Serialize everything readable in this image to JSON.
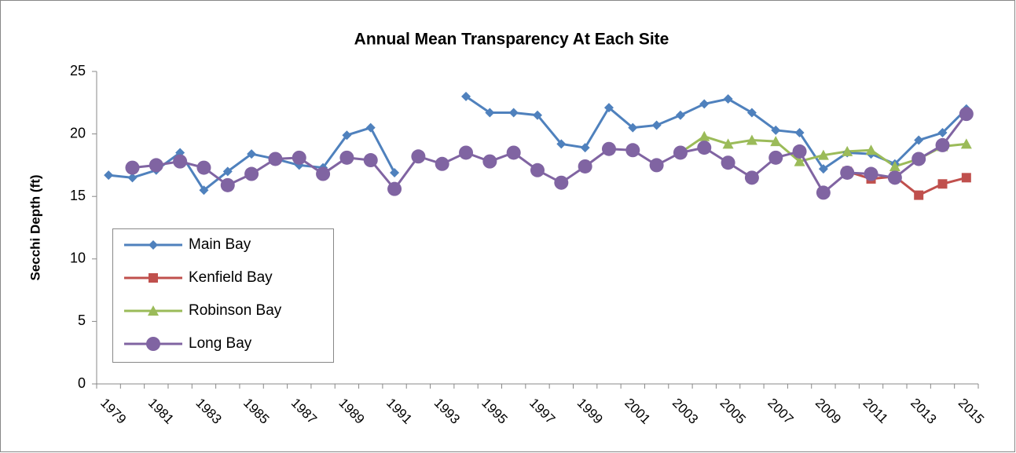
{
  "chart_data": {
    "type": "line",
    "title": "Annual Mean Transparency At Each Site",
    "y_label": "Secchi Depth (ft)",
    "categories": [
      "1979",
      null,
      "1981",
      null,
      "1983",
      null,
      "1985",
      null,
      "1987",
      null,
      "1989",
      null,
      "1991",
      null,
      "1993",
      null,
      "1995",
      null,
      "1997",
      null,
      "1999",
      null,
      "2001",
      null,
      "2003",
      null,
      "2005",
      null,
      "2007",
      null,
      "2009",
      null,
      "2011",
      null,
      "2013",
      null,
      "2015"
    ],
    "ylim": [
      0,
      25
    ],
    "yticks": [
      0,
      5,
      10,
      15,
      20,
      25
    ],
    "grid": false,
    "legend": "left",
    "series": [
      {
        "name": "Main Bay",
        "color": "#4f81bd",
        "marker": "diamond",
        "values": [
          16.7,
          16.5,
          17.1,
          18.5,
          15.5,
          17.0,
          18.4,
          18.0,
          17.5,
          17.3,
          19.9,
          20.5,
          16.9,
          null,
          null,
          23.0,
          21.7,
          21.7,
          21.5,
          19.2,
          18.9,
          22.1,
          20.5,
          20.7,
          21.5,
          22.4,
          22.8,
          21.7,
          20.3,
          20.1,
          17.2,
          18.5,
          18.4,
          17.6,
          19.5,
          20.1,
          22.0
        ]
      },
      {
        "name": "Kenfield Bay",
        "color": "#c0504d",
        "marker": "square",
        "values": [
          null,
          null,
          null,
          null,
          null,
          null,
          null,
          null,
          null,
          null,
          null,
          null,
          null,
          null,
          null,
          null,
          null,
          null,
          null,
          null,
          null,
          null,
          null,
          null,
          null,
          null,
          null,
          null,
          null,
          null,
          null,
          17.0,
          16.4,
          16.6,
          15.1,
          16.0,
          16.5
        ]
      },
      {
        "name": "Robinson Bay",
        "color": "#9bbb59",
        "marker": "triangle",
        "values": [
          null,
          null,
          null,
          null,
          null,
          null,
          null,
          null,
          null,
          null,
          null,
          null,
          null,
          null,
          null,
          null,
          null,
          null,
          null,
          null,
          null,
          null,
          null,
          null,
          18.5,
          19.8,
          19.2,
          19.5,
          19.4,
          17.8,
          18.3,
          18.6,
          18.7,
          17.4,
          18.0,
          19.0,
          19.2
        ]
      },
      {
        "name": "Long Bay",
        "color": "#8064a2",
        "marker": "circle",
        "values": [
          null,
          17.3,
          17.5,
          17.8,
          17.3,
          15.9,
          16.8,
          18.0,
          18.1,
          16.8,
          18.1,
          17.9,
          15.6,
          18.2,
          17.6,
          18.5,
          17.8,
          18.5,
          17.1,
          16.1,
          17.4,
          18.8,
          18.7,
          17.5,
          18.5,
          18.9,
          17.7,
          16.5,
          18.1,
          18.6,
          15.3,
          16.9,
          16.8,
          16.5,
          18.0,
          19.1,
          21.6
        ]
      }
    ]
  }
}
